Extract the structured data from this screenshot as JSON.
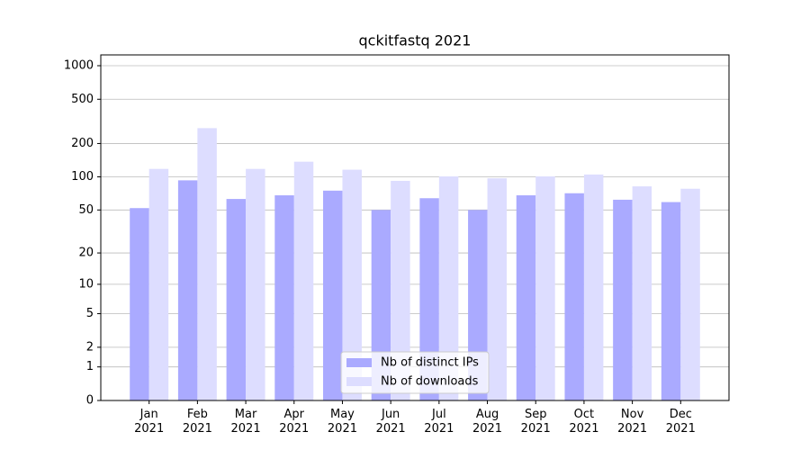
{
  "chart_data": {
    "type": "bar",
    "title": "qckitfastq 2021",
    "categories": [
      "Jan\n2021",
      "Feb\n2021",
      "Mar\n2021",
      "Apr\n2021",
      "May\n2021",
      "Jun\n2021",
      "Jul\n2021",
      "Aug\n2021",
      "Sep\n2021",
      "Oct\n2021",
      "Nov\n2021",
      "Dec\n2021"
    ],
    "series": [
      {
        "name": "Nb of distinct IPs",
        "color": "#aaaaff",
        "values": [
          52,
          93,
          63,
          68,
          75,
          50,
          64,
          50,
          68,
          71,
          62,
          59
        ]
      },
      {
        "name": "Nb of downloads",
        "color": "#ddddff",
        "values": [
          118,
          275,
          118,
          137,
          116,
          92,
          101,
          97,
          101,
          105,
          82,
          78
        ]
      }
    ],
    "yscale": "log1p",
    "ylim": [
      0,
      1250
    ],
    "yticks": [
      0,
      1,
      2,
      5,
      10,
      20,
      50,
      100,
      200,
      500,
      1000
    ],
    "grid": true,
    "legend": "lower center"
  }
}
